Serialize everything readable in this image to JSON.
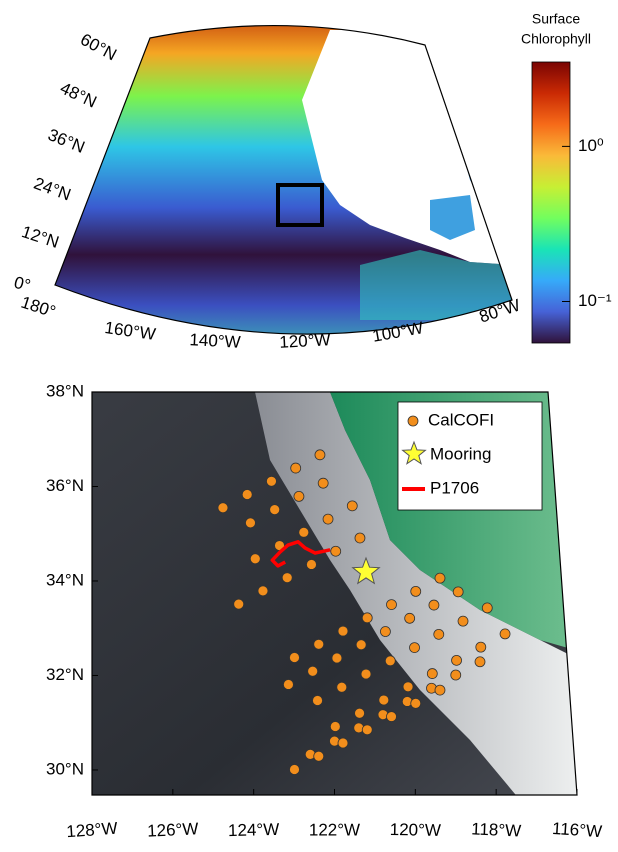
{
  "maps": [
    {
      "type": "chlorophyll-map",
      "lat_labels": [
        "60°N",
        "48°N",
        "36°N",
        "24°N",
        "12°N",
        "0°"
      ],
      "lon_labels": [
        "180°",
        "160°W",
        "140°W",
        "120°W",
        "100°W",
        "80°W"
      ],
      "colormap": [
        "#30123b",
        "#4662d7",
        "#36aaf9",
        "#1ae4b6",
        "#72fe5e",
        "#c7ef34",
        "#faba39",
        "#f66b19",
        "#ca2a04",
        "#7a0403"
      ],
      "colorbar": {
        "title": [
          "Surface",
          "Chlorophyll"
        ],
        "log": true,
        "clim": [
          0.054,
          3.5
        ],
        "ticks": [
          {
            "value": 1,
            "label": "10⁰"
          },
          {
            "value": 0.1,
            "label": "10⁻¹"
          }
        ]
      }
    },
    {
      "type": "station-map",
      "xlim": [
        -128,
        -116
      ],
      "ylim": [
        29.47,
        38
      ],
      "xticks": [
        {
          "value": -128,
          "label": "128°W"
        },
        {
          "value": -126,
          "label": "126°W"
        },
        {
          "value": -124,
          "label": "124°W"
        },
        {
          "value": -122,
          "label": "122°W"
        },
        {
          "value": -120,
          "label": "120°W"
        },
        {
          "value": -118,
          "label": "118°W"
        },
        {
          "value": -116,
          "label": "116°W"
        }
      ],
      "yticks": [
        {
          "value": 38,
          "label": "38°N"
        },
        {
          "value": 36,
          "label": "36°N"
        },
        {
          "value": 34,
          "label": "34°N"
        },
        {
          "value": 32,
          "label": "32°N"
        },
        {
          "value": 30,
          "label": "30°N"
        }
      ],
      "legend": "upper right",
      "stations": {
        "name": "CalCOFI",
        "color": "#f28e1c",
        "lon": [
          -122.36,
          -122.96,
          -123.56,
          -124.16,
          -124.76,
          -122.28,
          -122.88,
          -123.48,
          -124.08,
          -121.56,
          -122.16,
          -122.76,
          -123.36,
          -123.96,
          -121.37,
          -121.97,
          -122.57,
          -123.17,
          -123.77,
          -124.37,
          -119.39,
          -119.99,
          -120.59,
          -121.19,
          -121.79,
          -122.39,
          -122.99,
          -118.94,
          -119.54,
          -120.14,
          -120.74,
          -121.34,
          -121.94,
          -122.54,
          -123.14,
          -118.22,
          -118.82,
          -119.42,
          -120.02,
          -120.62,
          -121.22,
          -121.82,
          -122.42,
          -117.78,
          -118.38,
          -118.98,
          -119.58,
          -120.18,
          -120.78,
          -121.38,
          -121.98,
          -118.4,
          -119.0,
          -119.6,
          -120.2,
          -120.8,
          -121.4,
          -122.0,
          -122.6,
          -119.39,
          -119.99,
          -120.59,
          -121.19,
          -121.79,
          -122.39,
          -122.99
        ],
        "lat": [
          36.67,
          36.39,
          36.11,
          35.83,
          35.55,
          36.07,
          35.79,
          35.51,
          35.23,
          35.59,
          35.31,
          35.03,
          34.75,
          34.47,
          34.91,
          34.63,
          34.35,
          34.07,
          33.79,
          33.51,
          34.06,
          33.78,
          33.5,
          33.22,
          32.94,
          32.66,
          32.38,
          33.77,
          33.49,
          33.21,
          32.93,
          32.65,
          32.37,
          32.09,
          31.81,
          33.43,
          33.15,
          32.87,
          32.59,
          32.31,
          32.03,
          31.75,
          31.47,
          32.88,
          32.6,
          32.32,
          32.04,
          31.76,
          31.48,
          31.2,
          30.92,
          32.29,
          32.01,
          31.73,
          31.45,
          31.17,
          30.89,
          30.61,
          30.33,
          31.69,
          31.41,
          31.13,
          30.85,
          30.57,
          30.29,
          30.01
        ]
      },
      "mooring": {
        "name": "Mooring",
        "color": "#ffff33",
        "lon": -121.22,
        "lat": 34.19
      },
      "track": {
        "name": "P1706",
        "color": "#ff0000",
        "lon": [
          -122.11,
          -122.48,
          -122.73,
          -122.9,
          -123.15,
          -123.35,
          -123.54,
          -123.4,
          -123.22
        ],
        "lat": [
          34.66,
          34.59,
          34.7,
          34.83,
          34.76,
          34.61,
          34.44,
          34.32,
          34.4
        ]
      }
    }
  ]
}
